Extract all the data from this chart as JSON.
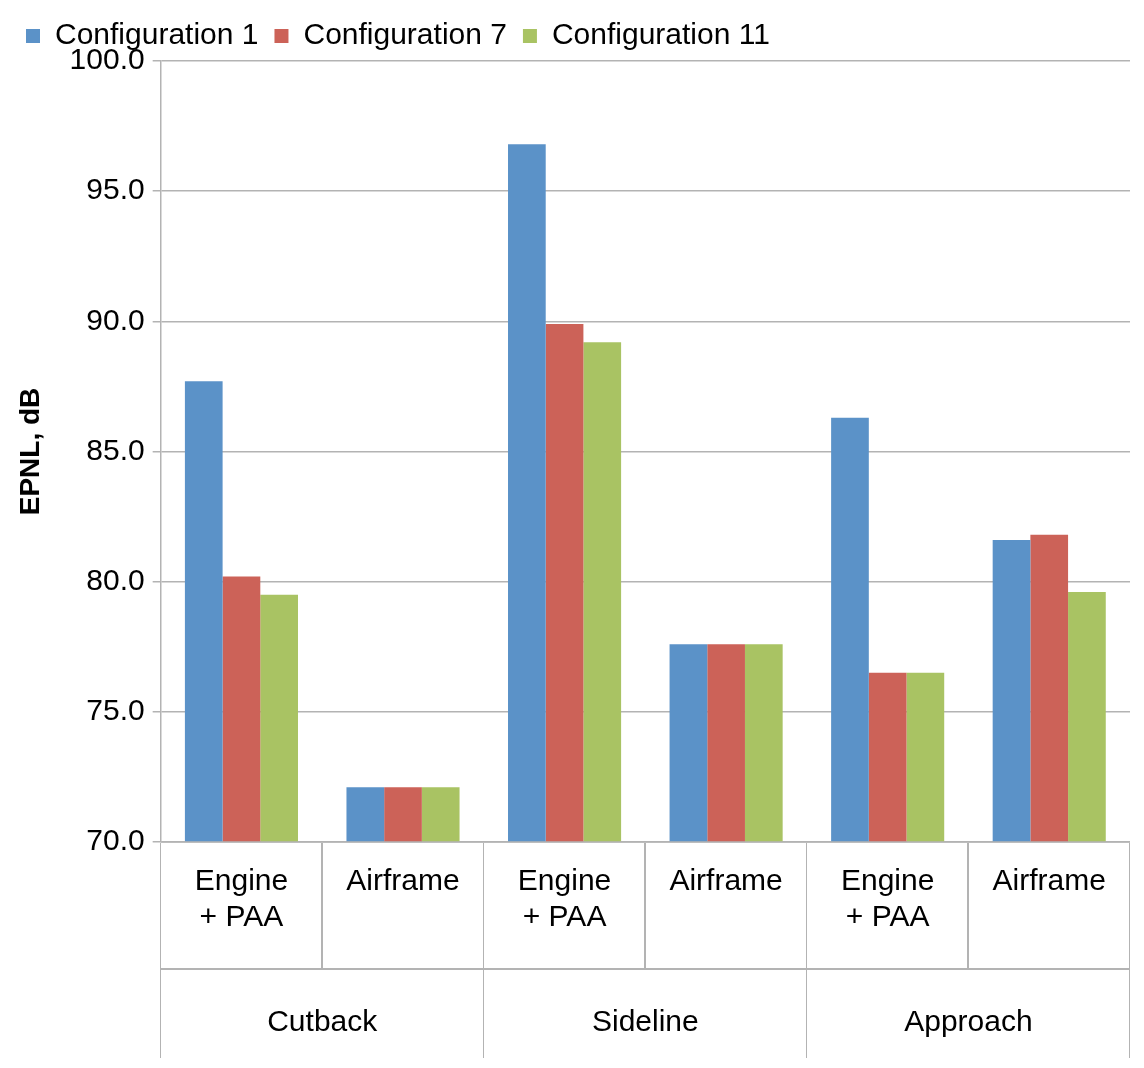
{
  "chart_data": {
    "type": "bar",
    "ylabel": "EPNL, dB",
    "categories": [
      "Engine + PAA",
      "Airframe",
      "Engine + PAA",
      "Airframe",
      "Engine + PAA",
      "Airframe"
    ],
    "series": [
      {
        "name": "Configuration 1",
        "color": "#5b92c8",
        "values": [
          87.7,
          72.1,
          96.8,
          77.6,
          86.3,
          81.6
        ]
      },
      {
        "name": "Configuration 7",
        "color": "#cc6258",
        "values": [
          80.2,
          72.1,
          89.9,
          77.6,
          76.5,
          81.8
        ]
      },
      {
        "name": "Configuration 11",
        "color": "#a9c363",
        "values": [
          79.5,
          72.1,
          89.2,
          77.6,
          76.5,
          79.6
        ]
      }
    ],
    "ylim": [
      70,
      100
    ],
    "yticks": [
      {
        "value": 70,
        "label": "70.0"
      },
      {
        "value": 75,
        "label": "75.0"
      },
      {
        "value": 80,
        "label": "80.0"
      },
      {
        "value": 85,
        "label": "85.0"
      },
      {
        "value": 90,
        "label": "90.0"
      },
      {
        "value": 95,
        "label": "95.0"
      },
      {
        "value": 100,
        "label": "100.0"
      }
    ],
    "grid": "y",
    "legend": "top",
    "annotations": [
      "Cutback",
      "Sideline",
      "Approach"
    ]
  }
}
